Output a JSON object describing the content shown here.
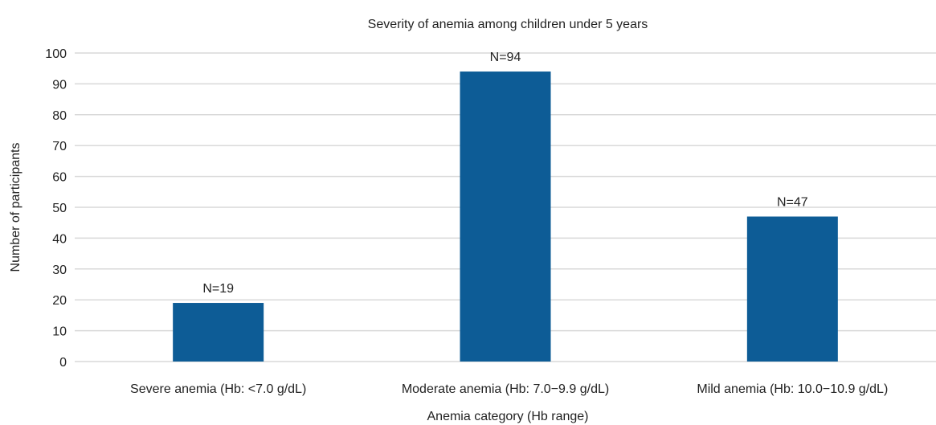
{
  "chart_data": {
    "type": "bar",
    "title": "Severity of anemia among children under 5 years",
    "xlabel": "Anemia category (Hb range)",
    "ylabel": "Number of participants",
    "categories": [
      "Severe anemia (Hb: <7.0 g/dL)",
      "Moderate anemia (Hb: 7.0−9.9 g/dL)",
      "Mild anemia (Hb: 10.0−10.9 g/dL)"
    ],
    "values": [
      19,
      94,
      47
    ],
    "data_labels": [
      "N=19",
      "N=94",
      "N=47"
    ],
    "yticks": [
      0,
      10,
      20,
      30,
      40,
      50,
      60,
      70,
      80,
      90,
      100
    ],
    "ylim": [
      0,
      100
    ],
    "grid": true,
    "legend": "none",
    "bar_color": "#0d5c96"
  }
}
